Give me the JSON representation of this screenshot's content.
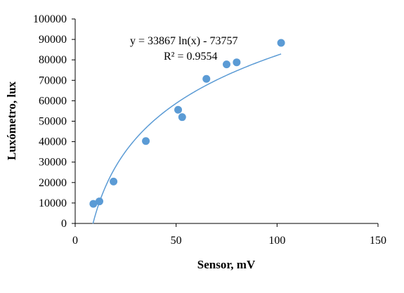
{
  "chart_data": {
    "type": "scatter",
    "title": "",
    "xlabel": "Sensor, mV",
    "ylabel": "Luxómetro, lux",
    "xlim": [
      0,
      150
    ],
    "ylim": [
      0,
      100000
    ],
    "x_ticks": [
      0,
      50,
      100,
      150
    ],
    "y_ticks": [
      0,
      10000,
      20000,
      30000,
      40000,
      50000,
      60000,
      70000,
      80000,
      90000,
      100000
    ],
    "grid": false,
    "legend": "none",
    "points": [
      {
        "x": 9,
        "y": 9600
      },
      {
        "x": 12,
        "y": 10800
      },
      {
        "x": 19,
        "y": 20500
      },
      {
        "x": 35,
        "y": 40300
      },
      {
        "x": 51,
        "y": 55600
      },
      {
        "x": 53,
        "y": 52000
      },
      {
        "x": 65,
        "y": 70700
      },
      {
        "x": 75,
        "y": 77800
      },
      {
        "x": 80,
        "y": 78800
      },
      {
        "x": 102,
        "y": 88300
      }
    ],
    "trendline": {
      "type": "logarithmic",
      "a": 33867,
      "b": -73757,
      "x_range": [
        8.8,
        102
      ],
      "equation_label": "y = 33867 ln(x) - 73757",
      "r2_label": "R² = 0.9554"
    },
    "colors": {
      "marker": "#5b9bd5",
      "trendline": "#5b9bd5",
      "axis": "#000000"
    }
  }
}
